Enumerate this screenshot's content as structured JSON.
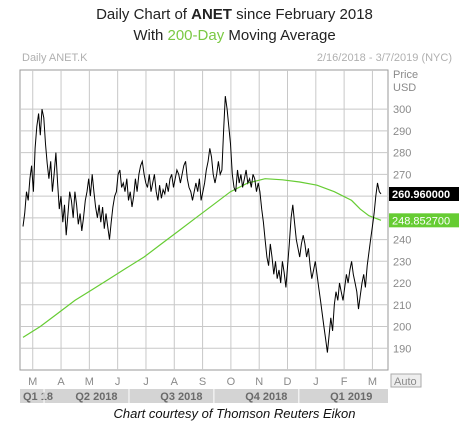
{
  "header": {
    "line1_pre": "Daily Chart of ",
    "ticker": "ANET",
    "line1_post": " since February 2018",
    "line2_pre": "With ",
    "ma_label": "200-Day",
    "line2_post": " Moving Average"
  },
  "caption": "Chart courtesy of Thomson Reuters Eikon",
  "colors": {
    "price": "#000000",
    "ma": "#66cc33",
    "grid": "#c8c8c8",
    "price_tag_bg": "#000000",
    "ma_tag_bg": "#66cc33"
  },
  "chart_data": {
    "type": "line",
    "panel_label": "Daily ANET.K",
    "date_range": "2/16/2018 - 3/7/2019 (NYC)",
    "y_axis_title_1": "Price",
    "y_axis_title_2": "USD",
    "ylim": [
      180,
      318
    ],
    "y_ticks": [
      190,
      200,
      210,
      220,
      230,
      240,
      250,
      260,
      270,
      280,
      290,
      300
    ],
    "grid": true,
    "last_price_label": "260.960000",
    "last_price": 260.96,
    "ma_label_value": "248.852700",
    "ma_value": 248.8527,
    "auto_label": "Auto",
    "month_labels": [
      "M",
      "A",
      "M",
      "J",
      "J",
      "A",
      "S",
      "O",
      "N",
      "D",
      "J",
      "F",
      "M"
    ],
    "quarter_labels": [
      "Q1 18",
      "Q2 2018",
      "Q3 2018",
      "Q4 2018",
      "Q1 2019"
    ],
    "series": [
      {
        "role": "price",
        "values": [
          [
            0,
            246
          ],
          [
            1,
            252
          ],
          [
            2,
            262
          ],
          [
            3,
            258
          ],
          [
            4,
            268
          ],
          [
            5,
            274
          ],
          [
            6,
            262
          ],
          [
            7,
            282
          ],
          [
            8,
            292
          ],
          [
            9,
            298
          ],
          [
            10,
            288
          ],
          [
            11,
            300
          ],
          [
            12,
            296
          ],
          [
            13,
            284
          ],
          [
            14,
            275
          ],
          [
            15,
            268
          ],
          [
            16,
            276
          ],
          [
            17,
            262
          ],
          [
            18,
            270
          ],
          [
            19,
            280
          ],
          [
            20,
            266
          ],
          [
            21,
            254
          ],
          [
            22,
            260
          ],
          [
            23,
            248
          ],
          [
            24,
            256
          ],
          [
            25,
            242
          ],
          [
            26,
            252
          ],
          [
            27,
            262
          ],
          [
            28,
            258
          ],
          [
            29,
            250
          ],
          [
            30,
            262
          ],
          [
            31,
            256
          ],
          [
            32,
            247
          ],
          [
            33,
            252
          ],
          [
            34,
            244
          ],
          [
            35,
            250
          ],
          [
            36,
            258
          ],
          [
            37,
            262
          ],
          [
            38,
            268
          ],
          [
            39,
            260
          ],
          [
            40,
            270
          ],
          [
            41,
            262
          ],
          [
            42,
            255
          ],
          [
            43,
            250
          ],
          [
            44,
            256
          ],
          [
            45,
            248
          ],
          [
            46,
            255
          ],
          [
            47,
            245
          ],
          [
            48,
            252
          ],
          [
            49,
            246
          ],
          [
            50,
            240
          ],
          [
            51,
            248
          ],
          [
            52,
            255
          ],
          [
            53,
            260
          ],
          [
            54,
            262
          ],
          [
            55,
            270
          ],
          [
            56,
            272
          ],
          [
            57,
            264
          ],
          [
            58,
            266
          ],
          [
            59,
            262
          ],
          [
            60,
            268
          ],
          [
            61,
            258
          ],
          [
            62,
            262
          ],
          [
            63,
            255
          ],
          [
            64,
            260
          ],
          [
            65,
            268
          ],
          [
            66,
            262
          ],
          [
            67,
            270
          ],
          [
            68,
            274
          ],
          [
            69,
            276
          ],
          [
            70,
            270
          ],
          [
            71,
            266
          ],
          [
            72,
            264
          ],
          [
            73,
            270
          ],
          [
            74,
            262
          ],
          [
            75,
            266
          ],
          [
            76,
            270
          ],
          [
            77,
            262
          ],
          [
            78,
            258
          ],
          [
            79,
            265
          ],
          [
            80,
            259
          ],
          [
            81,
            263
          ],
          [
            82,
            261
          ],
          [
            83,
            266
          ],
          [
            84,
            262
          ],
          [
            85,
            268
          ],
          [
            86,
            270
          ],
          [
            87,
            264
          ],
          [
            88,
            268
          ],
          [
            89,
            272
          ],
          [
            90,
            270
          ],
          [
            91,
            266
          ],
          [
            92,
            270
          ],
          [
            93,
            274
          ],
          [
            94,
            276
          ],
          [
            95,
            268
          ],
          [
            96,
            264
          ],
          [
            97,
            262
          ],
          [
            98,
            258
          ],
          [
            99,
            262
          ],
          [
            100,
            266
          ],
          [
            101,
            262
          ],
          [
            102,
            268
          ],
          [
            103,
            258
          ],
          [
            104,
            262
          ],
          [
            105,
            266
          ],
          [
            106,
            272
          ],
          [
            107,
            276
          ],
          [
            108,
            282
          ],
          [
            109,
            278
          ],
          [
            110,
            270
          ],
          [
            111,
            266
          ],
          [
            112,
            270
          ],
          [
            113,
            276
          ],
          [
            114,
            270
          ],
          [
            115,
            272
          ],
          [
            116,
            290
          ],
          [
            117,
            306
          ],
          [
            118,
            300
          ],
          [
            119,
            292
          ],
          [
            120,
            284
          ],
          [
            121,
            270
          ],
          [
            122,
            264
          ],
          [
            123,
            262
          ],
          [
            124,
            272
          ],
          [
            125,
            266
          ],
          [
            126,
            270
          ],
          [
            127,
            264
          ],
          [
            128,
            268
          ],
          [
            129,
            272
          ],
          [
            130,
            266
          ],
          [
            131,
            268
          ],
          [
            132,
            264
          ],
          [
            133,
            270
          ],
          [
            134,
            268
          ],
          [
            135,
            262
          ],
          [
            136,
            266
          ],
          [
            137,
            262
          ],
          [
            138,
            254
          ],
          [
            139,
            248
          ],
          [
            140,
            240
          ],
          [
            141,
            232
          ],
          [
            142,
            228
          ],
          [
            143,
            238
          ],
          [
            144,
            232
          ],
          [
            145,
            224
          ],
          [
            146,
            230
          ],
          [
            147,
            222
          ],
          [
            148,
            226
          ],
          [
            149,
            220
          ],
          [
            150,
            230
          ],
          [
            151,
            225
          ],
          [
            152,
            218
          ],
          [
            153,
            228
          ],
          [
            154,
            238
          ],
          [
            155,
            250
          ],
          [
            156,
            256
          ],
          [
            157,
            248
          ],
          [
            158,
            240
          ],
          [
            159,
            236
          ],
          [
            160,
            232
          ],
          [
            161,
            238
          ],
          [
            162,
            242
          ],
          [
            163,
            238
          ],
          [
            164,
            232
          ],
          [
            165,
            236
          ],
          [
            166,
            228
          ],
          [
            167,
            222
          ],
          [
            168,
            226
          ],
          [
            169,
            230
          ],
          [
            170,
            224
          ],
          [
            171,
            218
          ],
          [
            172,
            212
          ],
          [
            173,
            206
          ],
          [
            174,
            200
          ],
          [
            175,
            194
          ],
          [
            176,
            188
          ],
          [
            177,
            196
          ],
          [
            178,
            204
          ],
          [
            179,
            198
          ],
          [
            180,
            210
          ],
          [
            181,
            216
          ],
          [
            182,
            212
          ],
          [
            183,
            220
          ],
          [
            184,
            216
          ],
          [
            185,
            212
          ],
          [
            186,
            218
          ],
          [
            187,
            224
          ],
          [
            188,
            220
          ],
          [
            189,
            226
          ],
          [
            190,
            230
          ],
          [
            191,
            224
          ],
          [
            192,
            220
          ],
          [
            193,
            216
          ],
          [
            194,
            208
          ],
          [
            195,
            214
          ],
          [
            196,
            220
          ],
          [
            197,
            224
          ],
          [
            198,
            218
          ],
          [
            199,
            228
          ],
          [
            200,
            234
          ],
          [
            201,
            240
          ],
          [
            202,
            246
          ],
          [
            203,
            252
          ],
          [
            204,
            260
          ],
          [
            205,
            266
          ],
          [
            206,
            262
          ],
          [
            207,
            261
          ]
        ]
      },
      {
        "role": "ma",
        "values": [
          [
            0,
            195
          ],
          [
            10,
            200
          ],
          [
            20,
            206
          ],
          [
            30,
            212
          ],
          [
            40,
            217
          ],
          [
            50,
            222
          ],
          [
            60,
            227
          ],
          [
            70,
            232
          ],
          [
            80,
            238
          ],
          [
            90,
            244
          ],
          [
            100,
            250
          ],
          [
            110,
            256
          ],
          [
            120,
            262
          ],
          [
            130,
            266
          ],
          [
            140,
            268
          ],
          [
            150,
            267.5
          ],
          [
            160,
            266.5
          ],
          [
            170,
            265
          ],
          [
            180,
            262
          ],
          [
            190,
            258
          ],
          [
            195,
            254
          ],
          [
            200,
            251
          ],
          [
            207,
            248.85
          ]
        ]
      }
    ]
  }
}
